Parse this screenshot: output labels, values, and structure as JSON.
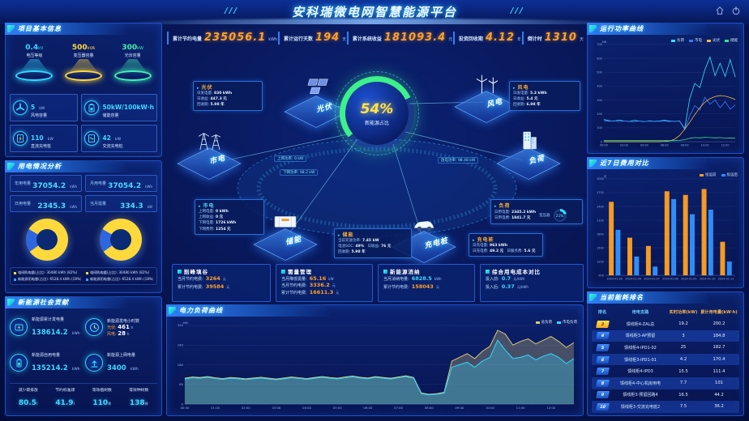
{
  "header": {
    "title": "安科瑞微电网智慧能源平台"
  },
  "topbar": [
    {
      "label": "累计节约电量",
      "value": "235056.1",
      "unit": "kWh"
    },
    {
      "label": "累计运行天数",
      "value": "194",
      "unit": "天"
    },
    {
      "label": "累计系统收益",
      "value": "181093.4",
      "unit": "元"
    },
    {
      "label": "投资回收期",
      "value": "4.12",
      "unit": "年"
    },
    {
      "label": "倒计时",
      "value": "1310",
      "unit": "天"
    }
  ],
  "project": {
    "title": "项目基本信息",
    "gauges": [
      {
        "value": "0.4",
        "unit": "kV",
        "label": "电压等级",
        "color": "#35d8ff"
      },
      {
        "value": "500",
        "unit": "kVA",
        "label": "变压器容量",
        "color": "#ffd93c"
      },
      {
        "value": "300",
        "unit": "kW",
        "label": "光伏容量",
        "color": "#41f1b4"
      }
    ],
    "cards": [
      {
        "value": "5",
        "unit": "kW",
        "label": "风电容量"
      },
      {
        "value": "50kW/100kW·h",
        "unit": "",
        "label": "储能容量"
      },
      {
        "value": "110",
        "unit": "kW",
        "label": "直流充电桩"
      },
      {
        "value": "42",
        "unit": "kW",
        "label": "交流充电桩"
      }
    ]
  },
  "usage": {
    "title": "用电情况分析",
    "stats": [
      {
        "label": "年用电量",
        "value": "37054.2",
        "unit": "kWh"
      },
      {
        "label": "月用电量",
        "value": "37054.2",
        "unit": "kWh"
      },
      {
        "label": "日用电量",
        "value": "2345.3",
        "unit": "kWh"
      },
      {
        "label": "当月需量",
        "value": "334.3",
        "unit": "kW"
      }
    ],
    "donut": {
      "grid_pct": 82,
      "new_energy_pct": 18,
      "grid_color": "#ffd93c",
      "new_energy_color": "#2f66e0"
    },
    "legends": [
      {
        "dot": "#ffd93c",
        "text": "电网购电量(占比): 30480 kWh (82%)"
      },
      {
        "dot": "#35a0ff",
        "text": "新能源用电量(占比): 6528.4 kWh (18%)"
      },
      {
        "dot": "#ffd93c",
        "text": "电网购电量(占比): 30480 kWh (82%)"
      },
      {
        "dot": "#35a0ff",
        "text": "新能源用电量(占比): 6528.4 kWh (18%)"
      }
    ]
  },
  "contribution": {
    "title": "新能源社会贡献",
    "items": [
      {
        "label": "新能源累计发电量",
        "value": "138614.2",
        "unit": "kWh"
      },
      {
        "label": "新能源发电小时数",
        "sub": [
          {
            "k": "光伏:",
            "v": "461",
            "u": "h"
          },
          {
            "k": "风电:",
            "v": "28",
            "u": "h"
          }
        ]
      },
      {
        "label": "新能源自用电量",
        "value": "135214.2",
        "unit": "kWh"
      },
      {
        "label": "新能源上网电量",
        "value": "3400",
        "unit": "kWh"
      }
    ],
    "minis": [
      {
        "label": "减少碳排放",
        "value": "80.5",
        "unit": "t"
      },
      {
        "label": "节约标准煤",
        "value": "41.9",
        "unit": "t"
      },
      {
        "label": "等效植树数",
        "value": "110",
        "unit": "棵"
      },
      {
        "label": "等效种树数",
        "value": "138",
        "unit": "棵"
      }
    ]
  },
  "center": {
    "ring": {
      "percent": "54%",
      "label": "新能源占比"
    },
    "nodes": {
      "grid": "市电",
      "pv": "光伏",
      "wind": "风电",
      "load": "负荷",
      "storage": "储能",
      "charger": "充电桩"
    },
    "boxes": {
      "pv": {
        "name": "光伏",
        "rows": [
          {
            "k": "日发电量:",
            "v": "830 kWh"
          },
          {
            "k": "日收益:",
            "v": "447.3 元"
          },
          {
            "k": "回收期:",
            "v": "5.98 年"
          }
        ]
      },
      "wind": {
        "name": "风电",
        "rows": [
          {
            "k": "日发电量:",
            "v": "5.3 kWh"
          },
          {
            "k": "日收益:",
            "v": "5.4 元"
          },
          {
            "k": "回收期:",
            "v": "6.98 年"
          }
        ]
      },
      "grid": {
        "name": "市电",
        "rows": [
          {
            "k": "上网电量:",
            "v": "0 kWh"
          },
          {
            "k": "上网收益:",
            "v": "0 元"
          },
          {
            "k": "下网电量:",
            "v": "1726 kWh"
          },
          {
            "k": "下网费用:",
            "v": "1254 元"
          }
        ]
      },
      "load": {
        "name": "负荷",
        "rows": [
          {
            "k": "日用电量:",
            "v": "2345.2 kWh"
          },
          {
            "k": "日用电费:",
            "v": "1841.7 元"
          }
        ],
        "gauge_label": "变压器",
        "gauge_value": "21%"
      },
      "storage": {
        "name": "储能",
        "rows": [
          {
            "k": "当前充放功率:",
            "v": "7.45 kW"
          },
          {
            "k": "电池SOC:",
            "v": "49%"
          },
          {
            "k": "日收益:",
            "v": "76 元"
          },
          {
            "k": "回收期:",
            "v": "5.98 年"
          }
        ]
      },
      "charger": {
        "name": "充电桩",
        "rows": [
          {
            "k": "日充电量:",
            "v": "963 kWh"
          },
          {
            "k": "日充电费:",
            "v": "49.2 元"
          },
          {
            "k": "日服务费:",
            "v": "5.6 元"
          }
        ]
      }
    },
    "float_labels": [
      "上网功率: 0 kW",
      "下网功率: 98.2 kW",
      "放电功率: 98.48 kW"
    ]
  },
  "statboxes": [
    {
      "title": "削峰填谷",
      "rows": [
        {
          "k": "当月节约电费:",
          "v": "3264",
          "u": "元"
        },
        {
          "k": "累计节约电费:",
          "v": "39584",
          "u": "元"
        }
      ]
    },
    {
      "title": "需量管理",
      "rows": [
        {
          "k": "当月降低需量:",
          "v": "65.16",
          "u": "kW"
        },
        {
          "k": "当月节约电费:",
          "v": "3336.2",
          "u": "元"
        },
        {
          "k": "累计节约电费:",
          "v": "16611.3",
          "u": "元"
        }
      ]
    },
    {
      "title": "新能源消纳",
      "rows": [
        {
          "k": "当月消纳电量:",
          "v": "6828.5",
          "u": "kWh"
        },
        {
          "k": "累计节约电费:",
          "v": "158043",
          "u": "元"
        }
      ]
    },
    {
      "title": "综合用电成本对比",
      "rows": [
        {
          "k": "投入前:",
          "v": "0.7",
          "u": "元/kWh"
        },
        {
          "k": "投入后:",
          "v": "0.37",
          "u": "元/kWh"
        }
      ]
    }
  ],
  "panels": {
    "power": "运行功率曲线",
    "cost": "近7日费用对比",
    "load": "电力负荷曲线",
    "rank": "当前能耗排名"
  },
  "ranking": {
    "columns": [
      "排名",
      "用电支路",
      "实时功率(kW)",
      "累计用电量(kW·h)"
    ],
    "rows": [
      {
        "rank": "3",
        "circuit": "馈线柜4-ZAL总",
        "power": "19.2",
        "energy": "200.2"
      },
      {
        "rank": "4",
        "circuit": "馈线柜3-AP预留",
        "power": "3",
        "energy": "184.8"
      },
      {
        "rank": "5",
        "circuit": "馈线柜4-IPD1-02",
        "power": "25",
        "energy": "182.7"
      },
      {
        "rank": "6",
        "circuit": "馈线柜3-IPD1-01",
        "power": "4.2",
        "energy": "170.4"
      },
      {
        "rank": "7",
        "circuit": "馈线柜4-IPD3",
        "power": "15.5",
        "energy": "111.4"
      },
      {
        "rank": "8",
        "circuit": "馈线柜4-中心机房用电",
        "power": "7.7",
        "energy": "101"
      },
      {
        "rank": "9",
        "circuit": "馈线柜3-预留回路4",
        "power": "16.5",
        "energy": "44.2"
      },
      {
        "rank": "10",
        "circuit": "馈线柜3-交流充电桩2",
        "power": "7.5",
        "energy": "36.2"
      }
    ]
  },
  "chart_data": [
    {
      "name": "运行功率曲线",
      "type": "line",
      "unit": "kW",
      "ylim": [
        0,
        700
      ],
      "yticks": [
        0,
        100,
        200,
        300,
        400,
        500,
        600,
        700
      ],
      "legend_position": "top-right",
      "grid": true,
      "x": [
        "00:00",
        "00:30",
        "01:00",
        "01:30",
        "02:00",
        "02:30",
        "03:00",
        "03:30",
        "04:00",
        "04:30",
        "05:00",
        "05:30",
        "06:00",
        "06:30",
        "07:00",
        "07:30",
        "08:00",
        "08:30",
        "09:00",
        "09:30",
        "10:00",
        "10:30",
        "11:00",
        "11:30",
        "12:00",
        "12:30",
        "13:00"
      ],
      "series": [
        {
          "name": "负荷",
          "color": "#35e0ff",
          "values": [
            160,
            152,
            148,
            156,
            150,
            146,
            154,
            149,
            144,
            151,
            147,
            150,
            154,
            149,
            147,
            150,
            95,
            310,
            420,
            390,
            520,
            610,
            475,
            565,
            470,
            590,
            465
          ]
        },
        {
          "name": "市电",
          "color": "#3b7bff",
          "values": [
            150,
            147,
            151,
            145,
            149,
            147,
            144,
            149,
            146,
            148,
            145,
            147,
            149,
            146,
            148,
            147,
            88,
            185,
            260,
            230,
            320,
            270,
            300,
            245,
            290,
            235,
            265
          ]
        },
        {
          "name": "光伏",
          "color": "#f5b942",
          "values": [
            0,
            0,
            0,
            0,
            0,
            0,
            0,
            0,
            0,
            0,
            0,
            0,
            2,
            6,
            18,
            45,
            90,
            140,
            195,
            245,
            285,
            310,
            325,
            332,
            328,
            318,
            305
          ]
        },
        {
          "name": "储能",
          "color": "#3ee08a",
          "values": [
            8,
            8,
            8,
            8,
            8,
            8,
            8,
            8,
            8,
            8,
            8,
            8,
            8,
            8,
            8,
            10,
            15,
            25,
            30,
            28,
            32,
            30,
            28,
            30,
            26,
            28,
            25
          ]
        }
      ]
    },
    {
      "name": "近7日费用对比",
      "type": "bar",
      "unit": "元",
      "ylim": [
        900,
        3000
      ],
      "yticks": [
        900,
        1200,
        1500,
        1800,
        2100,
        2400,
        2700,
        3000
      ],
      "legend_position": "top-right",
      "grid": true,
      "categories": [
        "2024-01-05",
        "2024-01-06",
        "2024-01-07",
        "2024-01-08",
        "2024-01-09",
        "2024-01-10",
        "2024-01-11"
      ],
      "series": [
        {
          "name": "投运前",
          "color": "#f59a23",
          "values": [
            2500,
            1720,
            1540,
            2730,
            2650,
            2780,
            1630
          ]
        },
        {
          "name": "投运后",
          "color": "#2f8df5",
          "values": [
            1890,
            1310,
            1090,
            2560,
            2230,
            2330,
            1200
          ]
        }
      ]
    },
    {
      "name": "电力负荷曲线",
      "type": "area",
      "unit": "kW",
      "ylim": [
        0,
        320
      ],
      "yticks": [
        0,
        80,
        160,
        240,
        320
      ],
      "legend_position": "top-right",
      "grid": true,
      "x": [
        "00:00",
        "00:15",
        "00:30",
        "00:45",
        "01:00",
        "01:15",
        "01:30",
        "01:45",
        "02:00",
        "02:15",
        "02:30",
        "02:45",
        "03:00",
        "03:15",
        "03:30",
        "03:45",
        "04:00",
        "04:15",
        "04:30",
        "04:45",
        "05:00",
        "05:15",
        "05:30",
        "05:45",
        "06:00",
        "06:15",
        "06:30",
        "06:45",
        "07:00",
        "07:15",
        "07:30",
        "07:45",
        "08:00",
        "08:15",
        "08:30",
        "08:45",
        "09:00",
        "09:15",
        "09:30",
        "09:45",
        "10:00",
        "10:15",
        "10:30",
        "10:45",
        "11:00",
        "11:15",
        "11:30",
        "11:45",
        "12:00",
        "12:15",
        "12:30",
        "12:45"
      ],
      "series": [
        {
          "name": "总负荷",
          "color": "#d8c878",
          "values": [
            105,
            110,
            108,
            112,
            107,
            104,
            108,
            106,
            103,
            106,
            109,
            105,
            102,
            106,
            110,
            107,
            104,
            108,
            112,
            108,
            105,
            110,
            114,
            109,
            106,
            112,
            108,
            105,
            110,
            115,
            108,
            45,
            40,
            42,
            48,
            175,
            190,
            205,
            185,
            215,
            235,
            300,
            285,
            240,
            255,
            265,
            245,
            260,
            275,
            255,
            230,
            250
          ]
        },
        {
          "name": "市电负荷",
          "color": "#35d8ff",
          "values": [
            102,
            107,
            105,
            109,
            104,
            101,
            105,
            103,
            100,
            103,
            106,
            102,
            99,
            103,
            107,
            104,
            101,
            105,
            109,
            105,
            102,
            107,
            111,
            106,
            103,
            109,
            105,
            102,
            107,
            112,
            105,
            42,
            38,
            40,
            45,
            150,
            160,
            170,
            150,
            175,
            190,
            260,
            220,
            185,
            190,
            200,
            180,
            195,
            205,
            190,
            165,
            185
          ]
        }
      ]
    }
  ]
}
